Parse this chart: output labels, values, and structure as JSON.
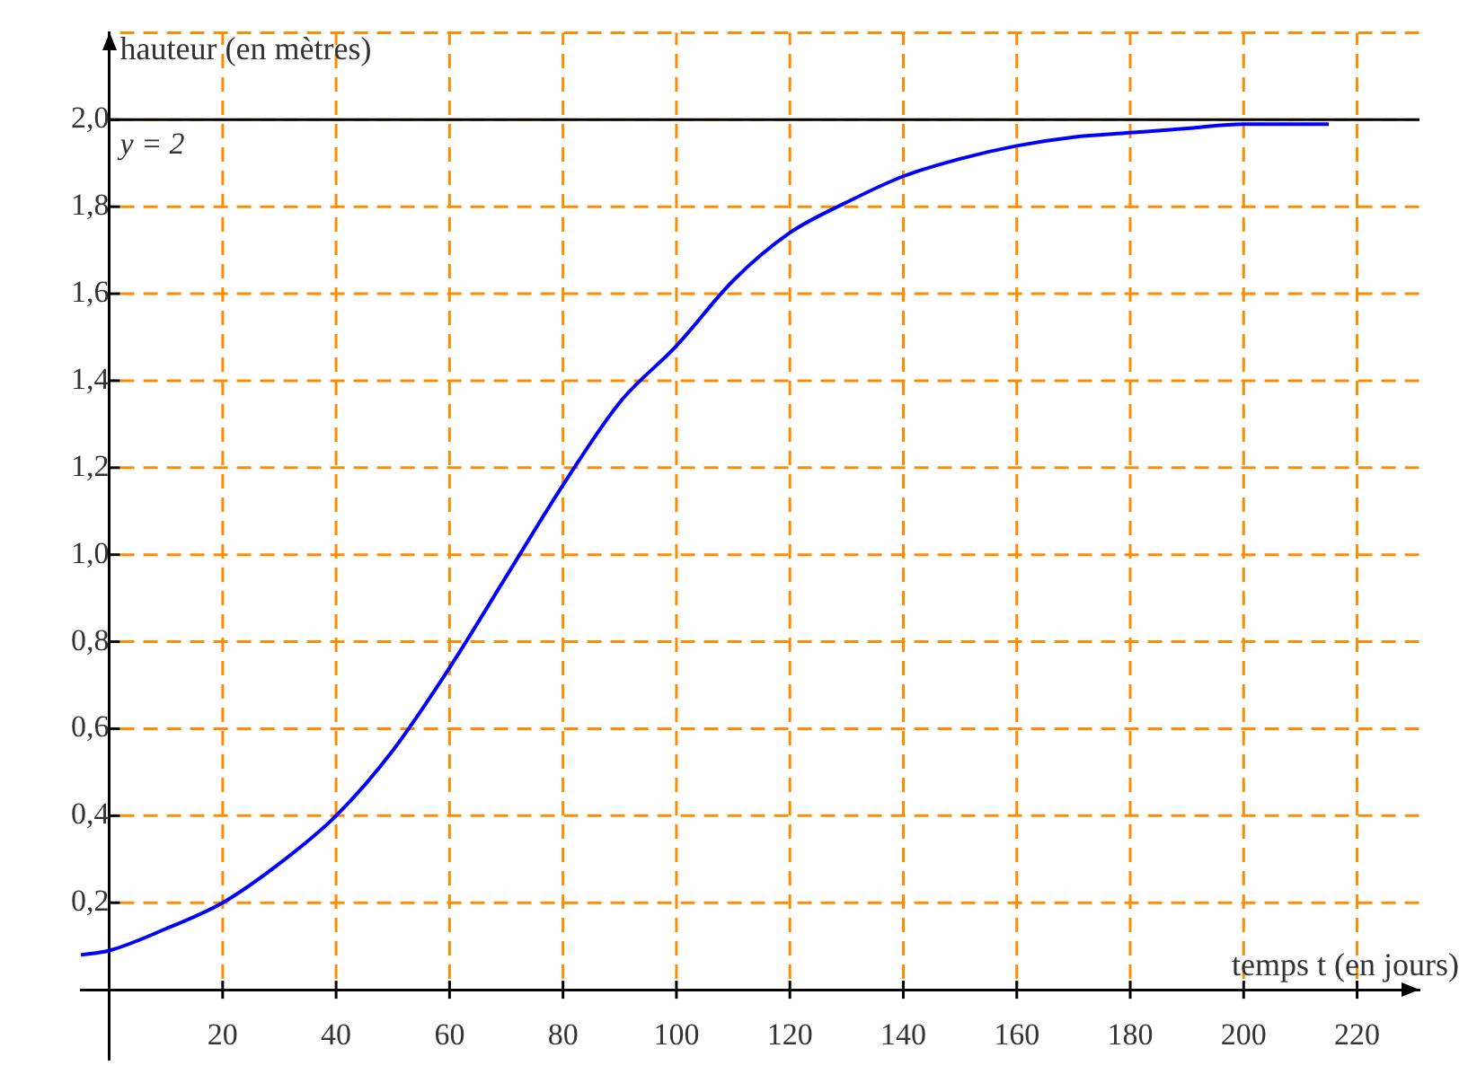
{
  "chart_data": {
    "type": "line",
    "xlabel": "temps t (en jours)",
    "ylabel": "hauteur (en mètres)",
    "x": [
      -5,
      0,
      10,
      20,
      30,
      40,
      50,
      60,
      70,
      80,
      90,
      100,
      110,
      120,
      130,
      140,
      150,
      160,
      170,
      180,
      190,
      200,
      215
    ],
    "series": [
      {
        "color": "#0000ff",
        "values": [
          0.08,
          0.09,
          0.14,
          0.2,
          0.29,
          0.4,
          0.55,
          0.74,
          0.95,
          1.16,
          1.35,
          1.48,
          1.63,
          1.74,
          1.81,
          1.87,
          1.91,
          1.94,
          1.96,
          1.97,
          1.98,
          1.99,
          1.99
        ]
      }
    ],
    "xlim": [
      -5,
      231
    ],
    "ylim": [
      -0.16,
      2.2
    ],
    "xticks": [
      20,
      40,
      60,
      80,
      100,
      120,
      140,
      160,
      180,
      200,
      220
    ],
    "yticks": [
      {
        "value": 0.2,
        "label": "0,2"
      },
      {
        "value": 0.4,
        "label": "0,4"
      },
      {
        "value": 0.6,
        "label": "0,6"
      },
      {
        "value": 0.8,
        "label": "0,8"
      },
      {
        "value": 1.0,
        "label": "1,0"
      },
      {
        "value": 1.2,
        "label": "1,2"
      },
      {
        "value": 1.4,
        "label": "1,4"
      },
      {
        "value": 1.6,
        "label": "1,6"
      },
      {
        "value": 1.8,
        "label": "1,8"
      },
      {
        "value": 2.0,
        "label": "2,0"
      },
      {
        "value": 2.2,
        "label": null
      }
    ],
    "ref_lines": [
      {
        "axis": "y",
        "value": 2,
        "label": "y = 2",
        "color": "#000000"
      }
    ],
    "grid": true,
    "marker": "none",
    "line_style": "solid",
    "legend": false
  }
}
